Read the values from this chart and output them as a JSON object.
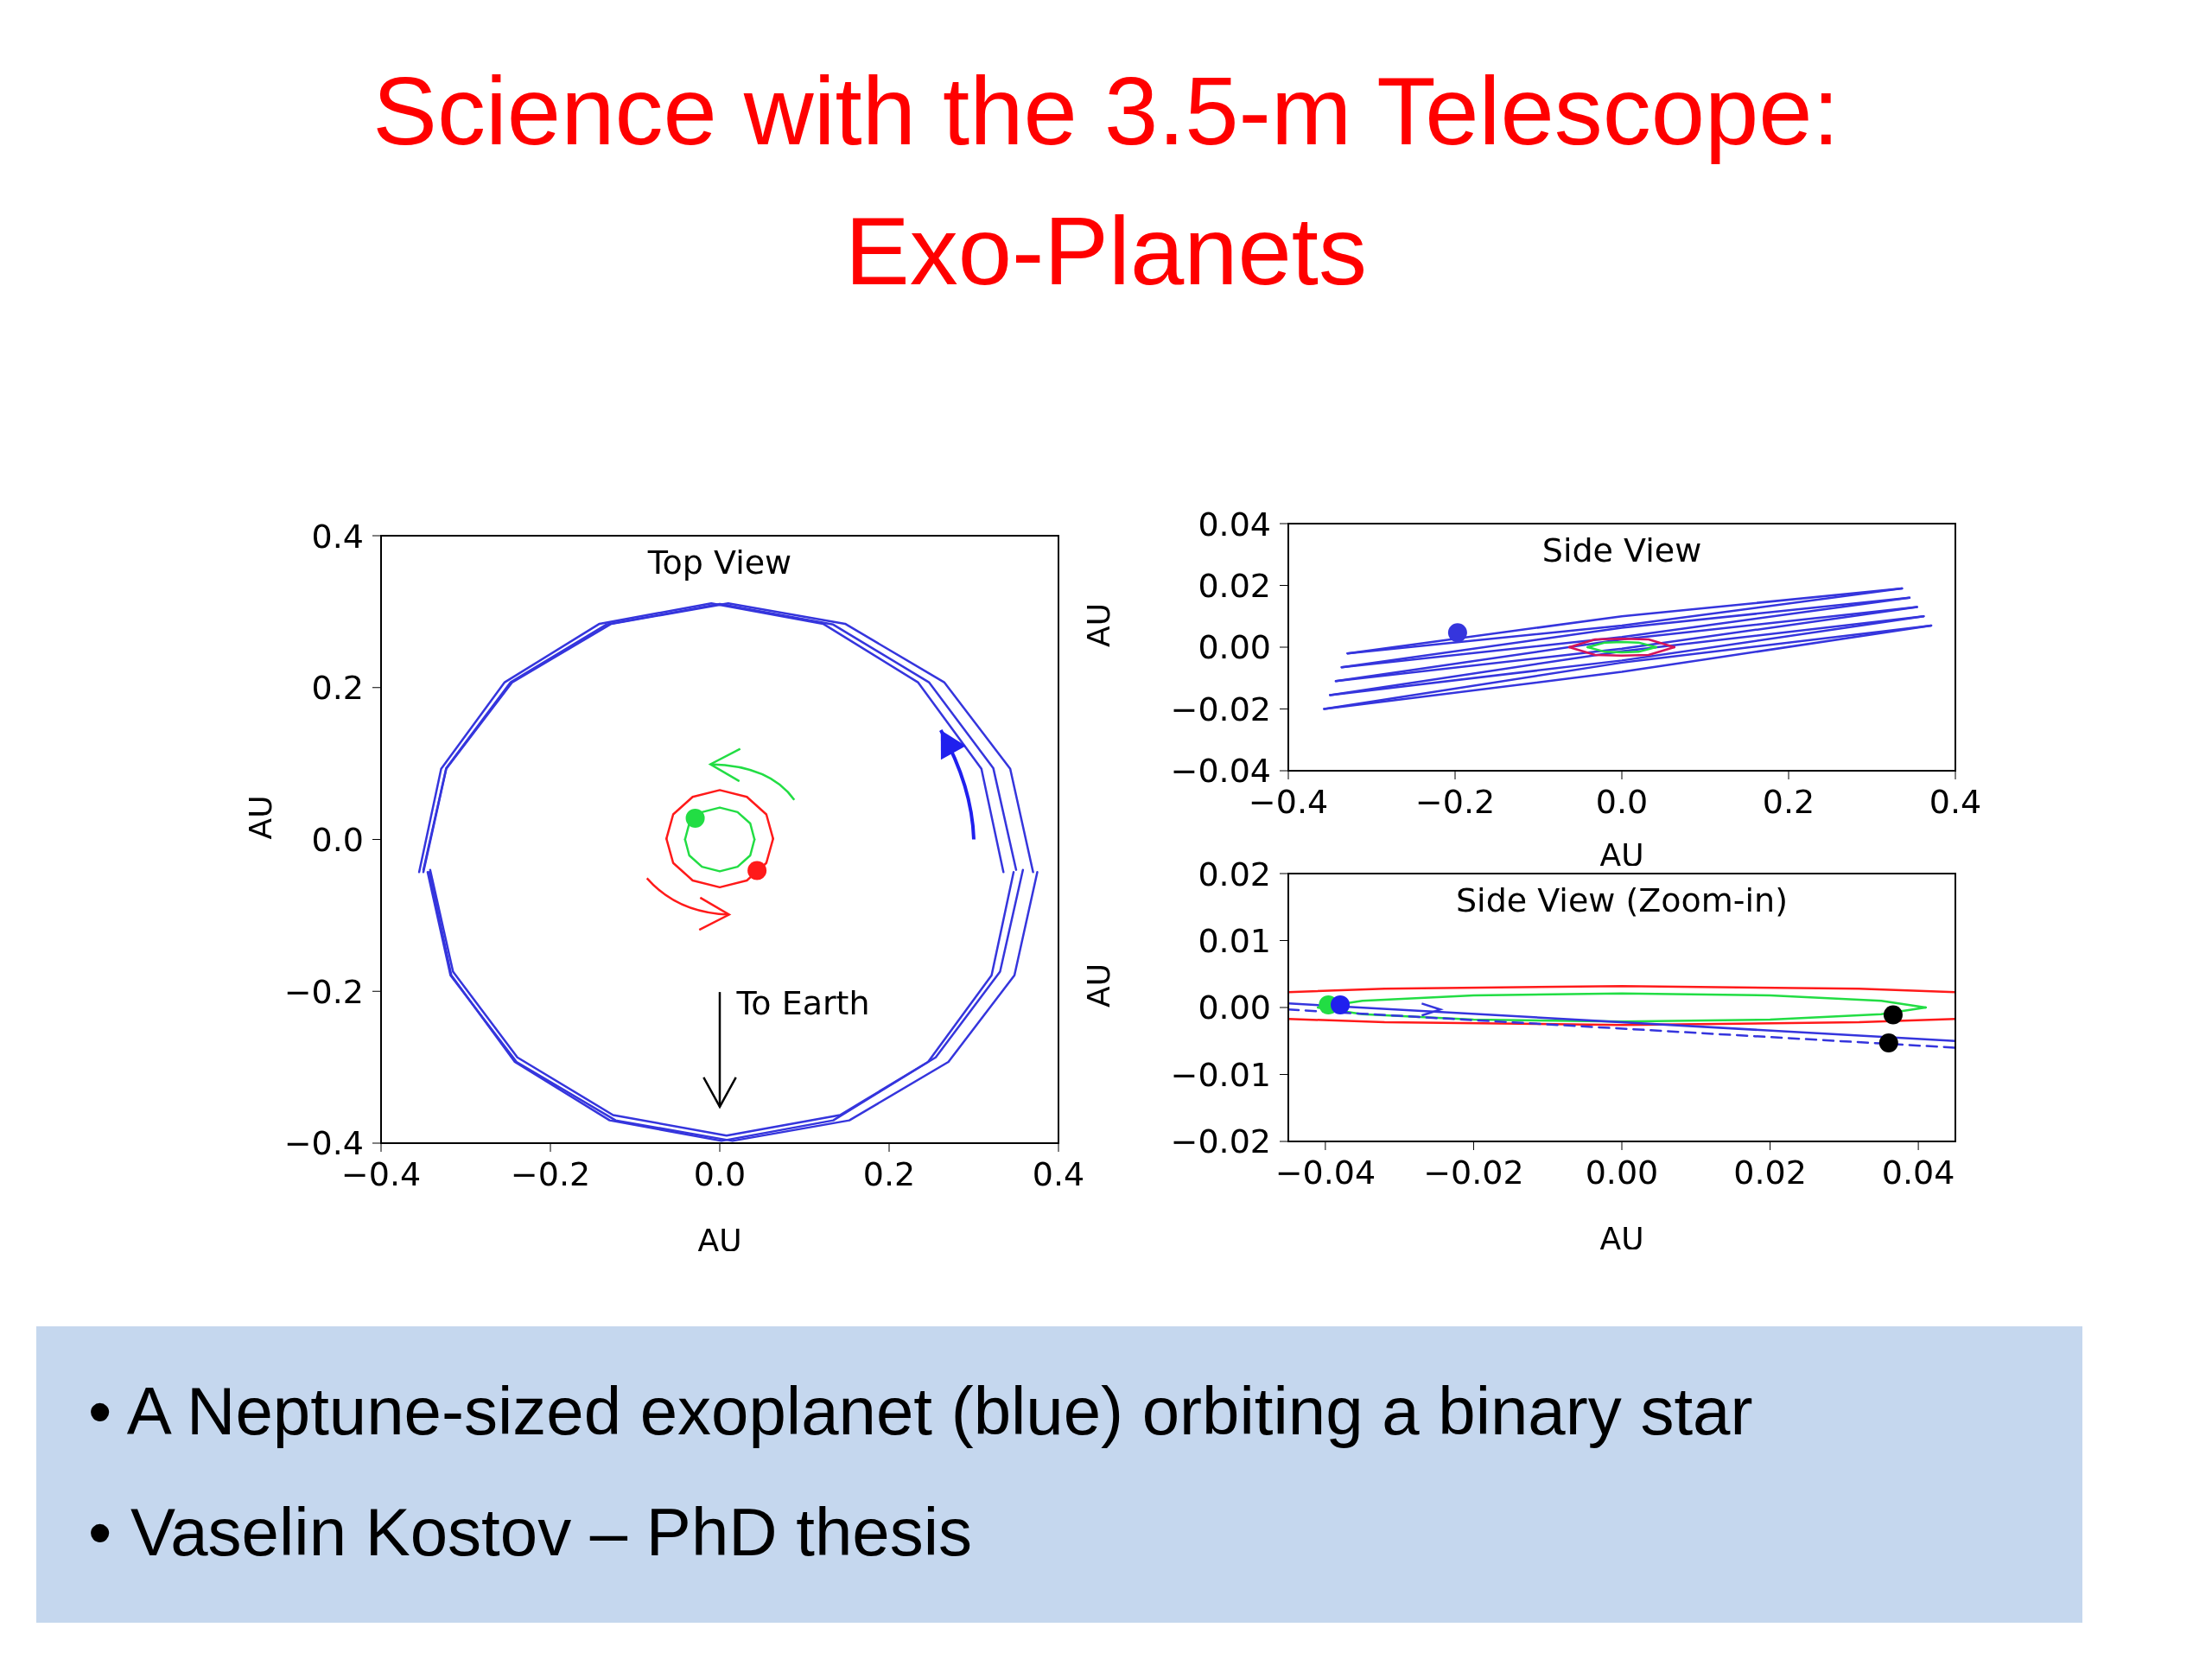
{
  "chart_data": [
    {
      "type": "line",
      "title": "Science with the 3.5-m Telescope: Exo-Planets",
      "subtitle": "Top View",
      "xlabel": "AU",
      "ylabel": "AU",
      "xlim": [
        -0.4,
        0.4
      ],
      "ylim": [
        -0.4,
        0.4
      ],
      "xticks": [
        {
          "value": -0.4,
          "label": "−0.4"
        },
        {
          "value": -0.2,
          "label": "−0.2"
        },
        {
          "value": 0,
          "label": "0.0"
        },
        0.2,
        0.4
      ],
      "yticks": [
        {
          "value": -0.4,
          "label": "−0.4"
        },
        {
          "value": -0.2,
          "label": "−0.2"
        },
        {
          "value": 0,
          "label": "0.0"
        },
        0.2,
        0.4
      ],
      "annotations": [
        "To Earth"
      ],
      "series": [
        {
          "type": "line",
          "color": "#3535dd",
          "x": [
            0.335,
            0.309,
            0.234,
            0.122,
            -0.01,
            -0.142,
            -0.254,
            -0.329,
            -0.355
          ],
          "values": [
            -0.043,
            0.093,
            0.207,
            0.284,
            0.311,
            0.284,
            0.207,
            0.093,
            -0.043
          ]
        },
        {
          "type": "line",
          "color": "#3535dd",
          "x": [
            -0.343,
            -0.317,
            -0.242,
            -0.13,
            0.002,
            0.134,
            0.246,
            0.321,
            0.347
          ],
          "values": [
            -0.043,
            -0.179,
            -0.293,
            -0.37,
            -0.397,
            -0.37,
            -0.293,
            -0.179,
            -0.043
          ]
        },
        {
          "type": "line",
          "color": "#3535dd",
          "x": [
            0.37,
            0.343,
            0.265,
            0.148,
            0.01,
            -0.128,
            -0.245,
            -0.323,
            -0.35
          ],
          "values": [
            -0.043,
            0.093,
            0.207,
            0.284,
            0.311,
            0.284,
            0.207,
            0.093,
            -0.043
          ]
        },
        {
          "type": "line",
          "color": "#3535dd",
          "x": [
            -0.345,
            -0.318,
            -0.24,
            -0.123,
            0.015,
            0.153,
            0.27,
            0.348,
            0.375
          ],
          "values": [
            -0.043,
            -0.179,
            -0.293,
            -0.37,
            -0.397,
            -0.37,
            -0.293,
            -0.179,
            -0.043
          ]
        },
        {
          "type": "line",
          "color": "#3535dd",
          "x": [
            0.35,
            0.323,
            0.247,
            0.134,
            0,
            -0.134,
            -0.247,
            -0.323,
            -0.35
          ],
          "values": [
            -0.04,
            0.094,
            0.207,
            0.283,
            0.31,
            0.283,
            0.207,
            0.094,
            -0.04
          ]
        },
        {
          "type": "line",
          "color": "#3535dd",
          "x": [
            -0.342,
            -0.315,
            -0.239,
            -0.126,
            0.008,
            0.142,
            0.255,
            0.331,
            0.358
          ],
          "values": [
            -0.04,
            -0.174,
            -0.287,
            -0.363,
            -0.39,
            -0.363,
            -0.287,
            -0.174,
            -0.04
          ]
        },
        {
          "type": "line",
          "color": "#ff1a1a",
          "x": [
            0.063,
            0.055,
            0.032,
            0,
            -0.032,
            -0.055,
            -0.063
          ],
          "values": [
            0.001,
            0.033,
            0.056,
            0.065,
            0.056,
            0.033,
            0.001
          ]
        },
        {
          "type": "line",
          "color": "#ff1a1a",
          "x": [
            -0.063,
            -0.055,
            -0.032,
            0,
            0.032,
            0.055,
            0.063
          ],
          "values": [
            0.001,
            -0.031,
            -0.054,
            -0.063,
            -0.054,
            -0.031,
            0.001
          ]
        },
        {
          "type": "line",
          "color": "#22dd44",
          "x": [
            0.041,
            0.036,
            0.021,
            0,
            -0.021,
            -0.036,
            -0.041
          ],
          "values": [
            0,
            0.021,
            0.036,
            0.042,
            0.036,
            0.021,
            0
          ]
        },
        {
          "type": "line",
          "color": "#22dd44",
          "x": [
            -0.041,
            -0.036,
            -0.021,
            0,
            0.021,
            0.036,
            0.041
          ],
          "values": [
            0,
            -0.021,
            -0.036,
            -0.042,
            -0.036,
            -0.021,
            0
          ]
        },
        {
          "type": "scatter",
          "marker": "circle",
          "color": "#22dd44",
          "x": [
            -0.029
          ],
          "values": [
            0.028
          ]
        },
        {
          "type": "scatter",
          "marker": "circle",
          "color": "#ff1a1a",
          "x": [
            0.044
          ],
          "values": [
            -0.041
          ]
        }
      ]
    },
    {
      "type": "line",
      "title": "Side View",
      "xlabel": "AU",
      "ylabel": "AU",
      "xlim": [
        -0.4,
        0.4
      ],
      "ylim": [
        -0.04,
        0.04
      ],
      "xticks": [
        {
          "value": -0.4,
          "label": "−0.4"
        },
        {
          "value": -0.2,
          "label": "−0.2"
        },
        {
          "value": 0,
          "label": "0.0"
        },
        0.2,
        0.4
      ],
      "yticks": [
        {
          "value": -0.04,
          "label": "−0.04"
        },
        {
          "value": -0.02,
          "label": "−0.02"
        },
        {
          "value": 0,
          "label": "0.00"
        },
        0.02,
        0.04
      ],
      "series": [
        {
          "type": "line",
          "color": "#3535dd",
          "x": [
            -0.329,
            0,
            0.336
          ],
          "values": [
            -0.002,
            0.01,
            0.019
          ]
        },
        {
          "type": "line",
          "color": "#3535dd",
          "x": [
            -0.329,
            0,
            0.336
          ],
          "values": [
            -0.002,
            0.007,
            0.019
          ]
        },
        {
          "type": "line",
          "color": "#3535dd",
          "x": [
            -0.336,
            0,
            0.345
          ],
          "values": [
            -0.0065,
            0.0063,
            0.016
          ]
        },
        {
          "type": "line",
          "color": "#3535dd",
          "x": [
            -0.336,
            0,
            0.345
          ],
          "values": [
            -0.0065,
            0.0033,
            0.016
          ]
        },
        {
          "type": "line",
          "color": "#3535dd",
          "x": [
            -0.343,
            0,
            0.354
          ],
          "values": [
            -0.011,
            0.0025,
            0.013
          ]
        },
        {
          "type": "line",
          "color": "#3535dd",
          "x": [
            -0.343,
            0,
            0.354
          ],
          "values": [
            -0.011,
            -0.0005,
            0.013
          ]
        },
        {
          "type": "line",
          "color": "#3535dd",
          "x": [
            -0.35,
            0,
            0.362
          ],
          "values": [
            -0.0155,
            -0.0013,
            0.01
          ]
        },
        {
          "type": "line",
          "color": "#3535dd",
          "x": [
            -0.35,
            0,
            0.362
          ],
          "values": [
            -0.0155,
            -0.0043,
            0.01
          ]
        },
        {
          "type": "line",
          "color": "#3535dd",
          "x": [
            -0.357,
            0,
            0.371
          ],
          "values": [
            -0.02,
            -0.005,
            0.007
          ]
        },
        {
          "type": "line",
          "color": "#3535dd",
          "x": [
            -0.357,
            0,
            0.371
          ],
          "values": [
            -0.02,
            -0.008,
            0.007
          ]
        },
        {
          "type": "line",
          "color": "#d4145a",
          "x": [
            -0.063,
            -0.032,
            0,
            0.032,
            0.063
          ],
          "values": [
            0,
            0.0025,
            0.0027,
            0.0025,
            0
          ]
        },
        {
          "type": "line",
          "color": "#d4145a",
          "x": [
            -0.063,
            -0.032,
            0,
            0.032,
            0.063
          ],
          "values": [
            0,
            -0.0025,
            -0.0027,
            -0.0025,
            0
          ]
        },
        {
          "type": "line",
          "color": "#22dd44",
          "x": [
            -0.041,
            -0.02,
            0,
            0.02,
            0.041
          ],
          "values": [
            0,
            0.0015,
            0.0017,
            0.0015,
            0
          ]
        },
        {
          "type": "line",
          "color": "#22dd44",
          "x": [
            -0.041,
            -0.02,
            0,
            0.02,
            0.041
          ],
          "values": [
            0,
            -0.0015,
            -0.0017,
            -0.0015,
            0
          ]
        },
        {
          "type": "scatter",
          "marker": "circle",
          "color": "#3535dd",
          "x": [
            -0.197
          ],
          "values": [
            0.0047
          ]
        }
      ]
    },
    {
      "type": "line",
      "title": "Side View (Zoom-in)",
      "xlabel": "AU",
      "ylabel": "AU",
      "xlim": [
        -0.045,
        0.045
      ],
      "ylim": [
        -0.02,
        0.02
      ],
      "xticks": [
        {
          "value": -0.04,
          "label": "−0.04"
        },
        {
          "value": -0.02,
          "label": "−0.02"
        },
        {
          "value": 0,
          "label": "0.00"
        },
        0.02,
        0.04
      ],
      "yticks": [
        {
          "value": -0.02,
          "label": "−0.02"
        },
        {
          "value": -0.01,
          "label": "−0.01"
        },
        {
          "value": 0,
          "label": "0.00"
        },
        0.01,
        0.02
      ],
      "annotations": [
        "• A Neptune-sized exoplanet (blue) orbiting a binary star",
        "• Vaselin Kostov – PhD thesis"
      ],
      "series": [
        {
          "type": "line",
          "color": "#ff1a1a",
          "x": [
            -0.045,
            -0.032,
            0,
            0.032,
            0.045
          ],
          "values": [
            0.0023,
            0.0028,
            0.0032,
            0.0028,
            0.0023
          ]
        },
        {
          "type": "line",
          "color": "#ff1a1a",
          "x": [
            -0.045,
            -0.032,
            0,
            0.032,
            0.045
          ],
          "values": [
            -0.0017,
            -0.0022,
            -0.0026,
            -0.0022,
            -0.0017
          ]
        },
        {
          "type": "line",
          "color": "#22dd44",
          "x": [
            -0.041,
            -0.035,
            -0.02,
            0,
            0.02,
            0.035,
            0.041
          ],
          "values": [
            0,
            0.001,
            0.0018,
            0.0021,
            0.0018,
            0.001,
            0
          ]
        },
        {
          "type": "line",
          "color": "#22dd44",
          "x": [
            -0.041,
            -0.035,
            -0.02,
            0,
            0.02,
            0.035,
            0.041
          ],
          "values": [
            0,
            -0.001,
            -0.0018,
            -0.0021,
            -0.0018,
            -0.001,
            0
          ]
        },
        {
          "type": "line",
          "color": "#3535dd",
          "x": [
            -0.045,
            0.045
          ],
          "values": [
            0.0006,
            -0.005
          ]
        },
        {
          "type": "line",
          "color": "#3535dd",
          "line_style": "dashed",
          "x": [
            -0.045,
            0.045
          ],
          "values": [
            -0.0003,
            -0.006
          ]
        },
        {
          "type": "scatter",
          "marker": "circle",
          "color": "#22dd44",
          "x": [
            -0.0396
          ],
          "values": [
            0.0004
          ]
        },
        {
          "type": "scatter",
          "marker": "circle",
          "color": "#2020ee",
          "x": [
            -0.038
          ],
          "values": [
            0.0004
          ]
        },
        {
          "type": "scatter",
          "marker": "circle",
          "color": "#000000",
          "x": [
            0.0366,
            0.036
          ],
          "values": [
            -0.0011,
            -0.0053
          ]
        }
      ]
    }
  ]
}
